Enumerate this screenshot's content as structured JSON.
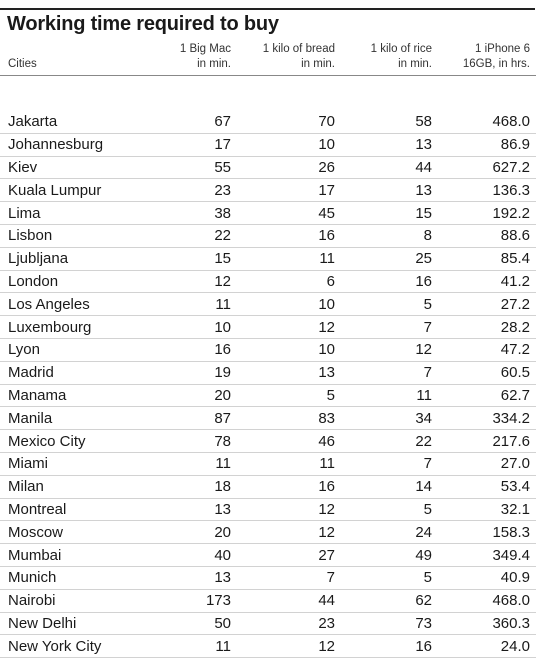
{
  "chart_data": {
    "type": "table",
    "title": "Working time required to buy",
    "columns": [
      "Cities",
      "1 Big Mac\nin min.",
      "1 kilo of bread\nin min.",
      "1 kilo of rice\nin min.",
      "1 iPhone 6\n16GB, in hrs."
    ],
    "header": {
      "cities": "Cities",
      "bigmac": [
        "1 Big Mac",
        "in min."
      ],
      "bread": [
        "1 kilo of bread",
        "in min."
      ],
      "rice": [
        "1 kilo of rice",
        "in min."
      ],
      "iphone": [
        "1 iPhone 6",
        "16GB, in hrs."
      ]
    },
    "rows": [
      [
        "Jakarta",
        "67",
        "70",
        "58",
        "468.0"
      ],
      [
        "Johannesburg",
        "17",
        "10",
        "13",
        "86.9"
      ],
      [
        "Kiev",
        "55",
        "26",
        "44",
        "627.2"
      ],
      [
        "Kuala Lumpur",
        "23",
        "17",
        "13",
        "136.3"
      ],
      [
        "Lima",
        "38",
        "45",
        "15",
        "192.2"
      ],
      [
        "Lisbon",
        "22",
        "16",
        "8",
        "88.6"
      ],
      [
        "Ljubljana",
        "15",
        "11",
        "25",
        "85.4"
      ],
      [
        "London",
        "12",
        "6",
        "16",
        "41.2"
      ],
      [
        "Los Angeles",
        "11",
        "10",
        "5",
        "27.2"
      ],
      [
        "Luxembourg",
        "10",
        "12",
        "7",
        "28.2"
      ],
      [
        "Lyon",
        "16",
        "10",
        "12",
        "47.2"
      ],
      [
        "Madrid",
        "19",
        "13",
        "7",
        "60.5"
      ],
      [
        "Manama",
        "20",
        "5",
        "11",
        "62.7"
      ],
      [
        "Manila",
        "87",
        "83",
        "34",
        "334.2"
      ],
      [
        "Mexico City",
        "78",
        "46",
        "22",
        "217.6"
      ],
      [
        "Miami",
        "11",
        "11",
        "7",
        "27.0"
      ],
      [
        "Milan",
        "18",
        "16",
        "14",
        "53.4"
      ],
      [
        "Montreal",
        "13",
        "12",
        "5",
        "32.1"
      ],
      [
        "Moscow",
        "20",
        "12",
        "24",
        "158.3"
      ],
      [
        "Mumbai",
        "40",
        "27",
        "49",
        "349.4"
      ],
      [
        "Munich",
        "13",
        "7",
        "5",
        "40.9"
      ],
      [
        "Nairobi",
        "173",
        "44",
        "62",
        "468.0"
      ],
      [
        "New Delhi",
        "50",
        "23",
        "73",
        "360.3"
      ],
      [
        "New York City",
        "11",
        "12",
        "16",
        "24.0"
      ]
    ]
  }
}
